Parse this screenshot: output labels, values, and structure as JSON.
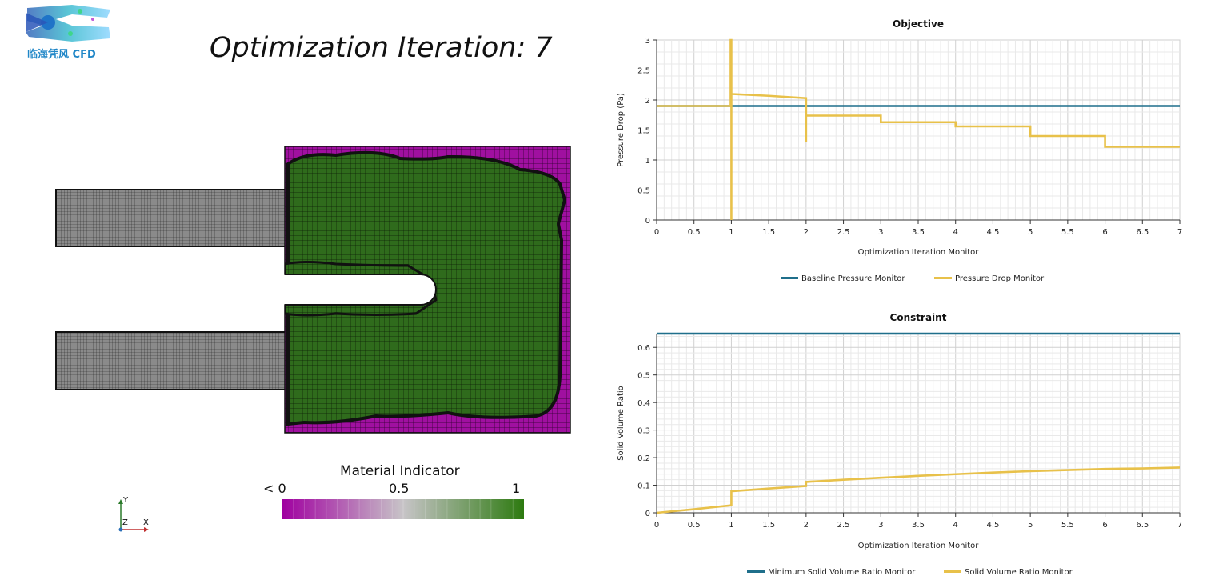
{
  "logo": {
    "text": "临海凭风 CFD"
  },
  "scene": {
    "title": "Optimization Iteration: 7",
    "colorbar": {
      "title": "Material Indicator",
      "ticks": [
        "< 0",
        "0.5",
        "1"
      ],
      "colors": [
        "#a000a0",
        "#c7c4c7",
        "#2d7a10"
      ]
    },
    "triad": {
      "y": "Y",
      "z": "Z",
      "x": "X"
    },
    "colors": {
      "fluid_mesh": "#808080",
      "solid": "#2f6b1c",
      "void": "#a010a0"
    }
  },
  "chart_data": [
    {
      "type": "line",
      "title": "Objective",
      "xlabel": "Optimization Iteration Monitor",
      "ylabel": "Pressure Drop (Pa)",
      "xlim": [
        0,
        7
      ],
      "ylim": [
        0,
        3
      ],
      "xticks": [
        "0",
        "0.5",
        "1",
        "1.5",
        "2",
        "2.5",
        "3",
        "3.5",
        "4",
        "4.5",
        "5",
        "5.5",
        "6",
        "6.5",
        "7"
      ],
      "yticks": [
        "0",
        "0.5",
        "1",
        "1.5",
        "2",
        "2.5",
        "3"
      ],
      "grid": true,
      "legend_position": "bottom",
      "series": [
        {
          "name": "Baseline Pressure Monitor",
          "color": "#1f6f8b",
          "points": [
            [
              0,
              1.9
            ],
            [
              7,
              1.9
            ]
          ]
        },
        {
          "name": "Pressure Drop Monitor",
          "color": "#e8c14a",
          "points": [
            [
              0,
              1.9
            ],
            [
              0.99,
              1.9
            ],
            [
              0.99,
              3.0
            ],
            [
              1.0,
              3.0
            ],
            [
              1.0,
              0
            ],
            [
              1.0,
              2.1
            ],
            [
              1.5,
              2.07
            ],
            [
              2.0,
              2.03
            ],
            [
              2.0,
              1.3
            ],
            [
              2.0,
              1.74
            ],
            [
              3.0,
              1.74
            ],
            [
              3.0,
              1.63
            ],
            [
              4.0,
              1.63
            ],
            [
              4.0,
              1.56
            ],
            [
              5.0,
              1.56
            ],
            [
              5.0,
              1.4
            ],
            [
              6.0,
              1.4
            ],
            [
              6.0,
              1.22
            ],
            [
              7.0,
              1.22
            ]
          ]
        }
      ]
    },
    {
      "type": "line",
      "title": "Constraint",
      "xlabel": "Optimization Iteration Monitor",
      "ylabel": "Solid Volume Ratio",
      "xlim": [
        0,
        7
      ],
      "ylim": [
        0,
        0.65
      ],
      "xticks": [
        "0",
        "0.5",
        "1",
        "1.5",
        "2",
        "2.5",
        "3",
        "3.5",
        "4",
        "4.5",
        "5",
        "5.5",
        "6",
        "6.5",
        "7"
      ],
      "yticks": [
        "0",
        "0.1",
        "0.2",
        "0.3",
        "0.4",
        "0.5",
        "0.6"
      ],
      "grid": true,
      "legend_position": "bottom",
      "series": [
        {
          "name": "Minimum Solid Volume Ratio Monitor",
          "color": "#1f6f8b",
          "points": [
            [
              0,
              0.65
            ],
            [
              7,
              0.65
            ]
          ]
        },
        {
          "name": "Solid Volume Ratio Monitor",
          "color": "#e8c14a",
          "points": [
            [
              0,
              0.0
            ],
            [
              0.5,
              0.013
            ],
            [
              1.0,
              0.027
            ],
            [
              1.0,
              0.078
            ],
            [
              1.5,
              0.088
            ],
            [
              2.0,
              0.097
            ],
            [
              2.0,
              0.112
            ],
            [
              2.5,
              0.12
            ],
            [
              3.0,
              0.127
            ],
            [
              3.5,
              0.134
            ],
            [
              4.0,
              0.14
            ],
            [
              4.5,
              0.146
            ],
            [
              5.0,
              0.151
            ],
            [
              5.5,
              0.155
            ],
            [
              6.0,
              0.159
            ],
            [
              6.5,
              0.161
            ],
            [
              7.0,
              0.164
            ]
          ]
        }
      ]
    }
  ]
}
